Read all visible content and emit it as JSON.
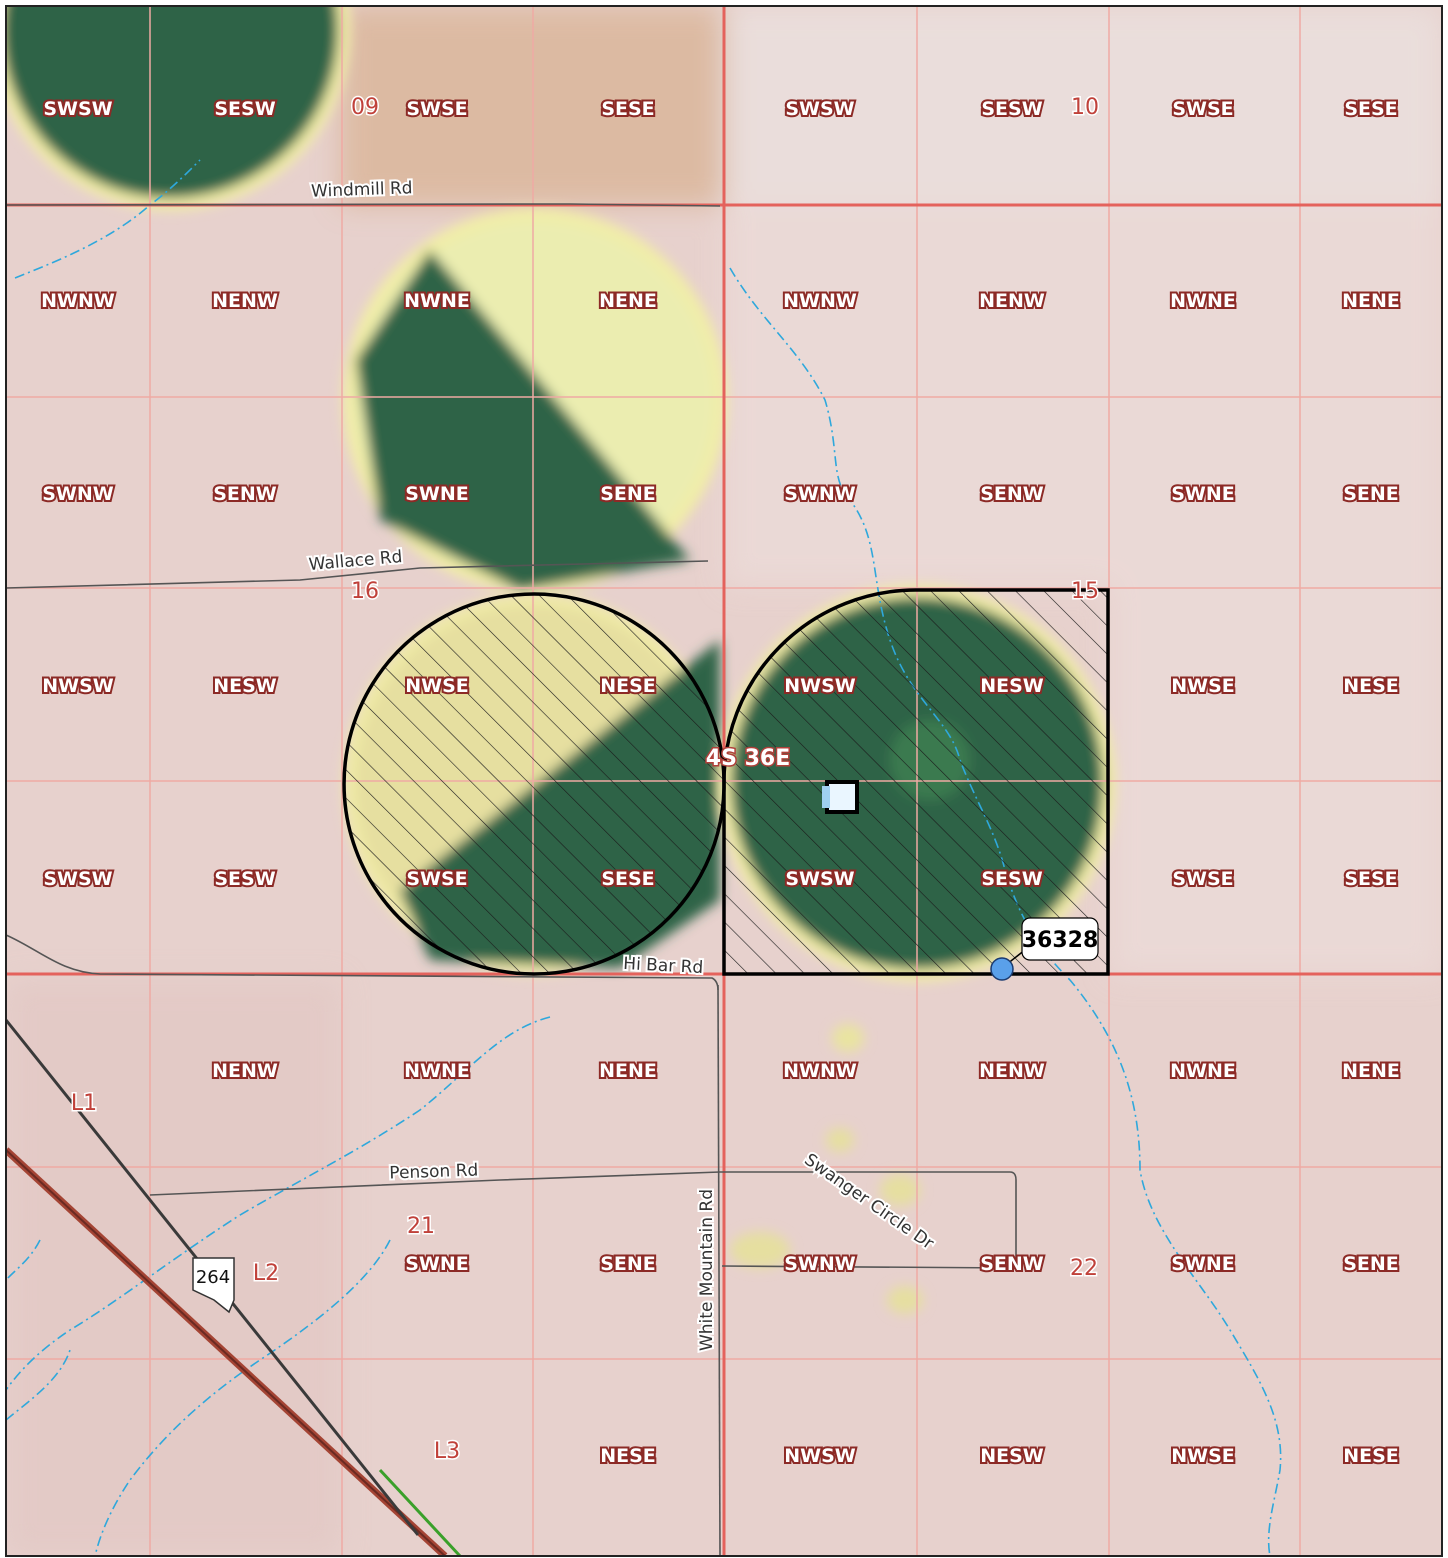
{
  "township_label": "4S 36E",
  "sections": [
    {
      "id": "s09",
      "label": "09"
    },
    {
      "id": "s10",
      "label": "10"
    },
    {
      "id": "s16",
      "label": "16"
    },
    {
      "id": "s15",
      "label": "15"
    },
    {
      "id": "s21",
      "label": "21"
    },
    {
      "id": "s22",
      "label": "22"
    }
  ],
  "lots": [
    "L1",
    "L2",
    "L3"
  ],
  "quarters": [
    [
      "SWSW",
      "SESW",
      "SWSE",
      "SESE",
      "SWSW",
      "SESW",
      "SWSE",
      "SESE"
    ],
    [
      "NWNW",
      "NENW",
      "NWNE",
      "NENE",
      "NWNW",
      "NENW",
      "NWNE",
      "NENE"
    ],
    [
      "SWNW",
      "SENW",
      "SWNE",
      "SENE",
      "SWNW",
      "SENW",
      "SWNE",
      "SENE"
    ],
    [
      "NWSW",
      "NESW",
      "NWSE",
      "NESE",
      "NWSW",
      "NESW",
      "NWSE",
      "NESE"
    ],
    [
      "SWSW",
      "SESW",
      "SWSE",
      "SESE",
      "SWSW",
      "SESW",
      "SWSE",
      "SESE"
    ],
    [
      "",
      "NENW",
      "NWNE",
      "NENE",
      "NWNW",
      "NENW",
      "NWNE",
      "NENE"
    ],
    [
      "",
      "",
      "SWNE",
      "SENE",
      "SWNW",
      "SENW",
      "SWNE",
      "SENE"
    ],
    [
      "",
      "",
      "",
      "NESE",
      "NWSW",
      "NESW",
      "NWSE",
      "NESE"
    ]
  ],
  "roads": {
    "windmill": "Windmill Rd",
    "wallace": "Wallace Rd",
    "hibar": "Hi Bar Rd",
    "penson": "Penson Rd",
    "swanger": "Swanger Circle Dr",
    "whitemountain": "White Mountain Rd"
  },
  "highway_shield": "264",
  "well_label": "36328",
  "colors": {
    "background": "#e7d1cd",
    "section_line": "#e4625c",
    "quarter_line": "#efaaa4",
    "crop_dark": "#2e6347",
    "crop_light": "#e9edb0",
    "stream": "#2ea8dc",
    "well_point": "#5aa0ea",
    "road": "#555555",
    "powerline": "#3a3a3a",
    "rail": "#a44434"
  }
}
